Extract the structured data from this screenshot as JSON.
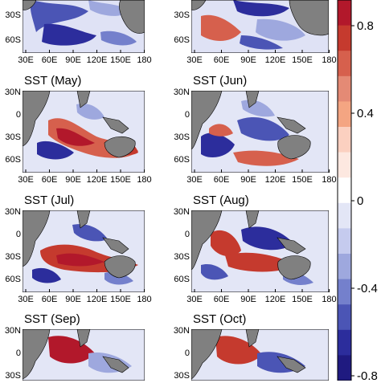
{
  "panels": [
    {
      "id": "apr",
      "title": ""
    },
    {
      "id": "mar",
      "title": ""
    },
    {
      "id": "may",
      "title": "SST (May)"
    },
    {
      "id": "jun",
      "title": "SST (Jun)"
    },
    {
      "id": "jul",
      "title": "SST (Jul)"
    },
    {
      "id": "aug",
      "title": "SST (Aug)"
    },
    {
      "id": "sep",
      "title": "SST (Sep)"
    },
    {
      "id": "oct",
      "title": "SST (Oct)"
    }
  ],
  "lat_ticks": [
    "30N",
    "0",
    "30S",
    "60S"
  ],
  "lon_ticks": [
    "30E",
    "60E",
    "90E",
    "120E",
    "150E",
    "180"
  ],
  "colorbar": {
    "labels": [
      "0.8",
      "0.4",
      "0",
      "-0.4",
      "-0.8"
    ],
    "colors": [
      "#b2182b",
      "#c53a2e",
      "#d6604d",
      "#e48a75",
      "#f4a582",
      "#fbd0c0",
      "#fde8e0",
      "#ffffff",
      "#e3e6f6",
      "#c5cbee",
      "#9ea8de",
      "#7480cc",
      "#4b55b5",
      "#2c2d9c",
      "#1f1a80"
    ]
  }
}
